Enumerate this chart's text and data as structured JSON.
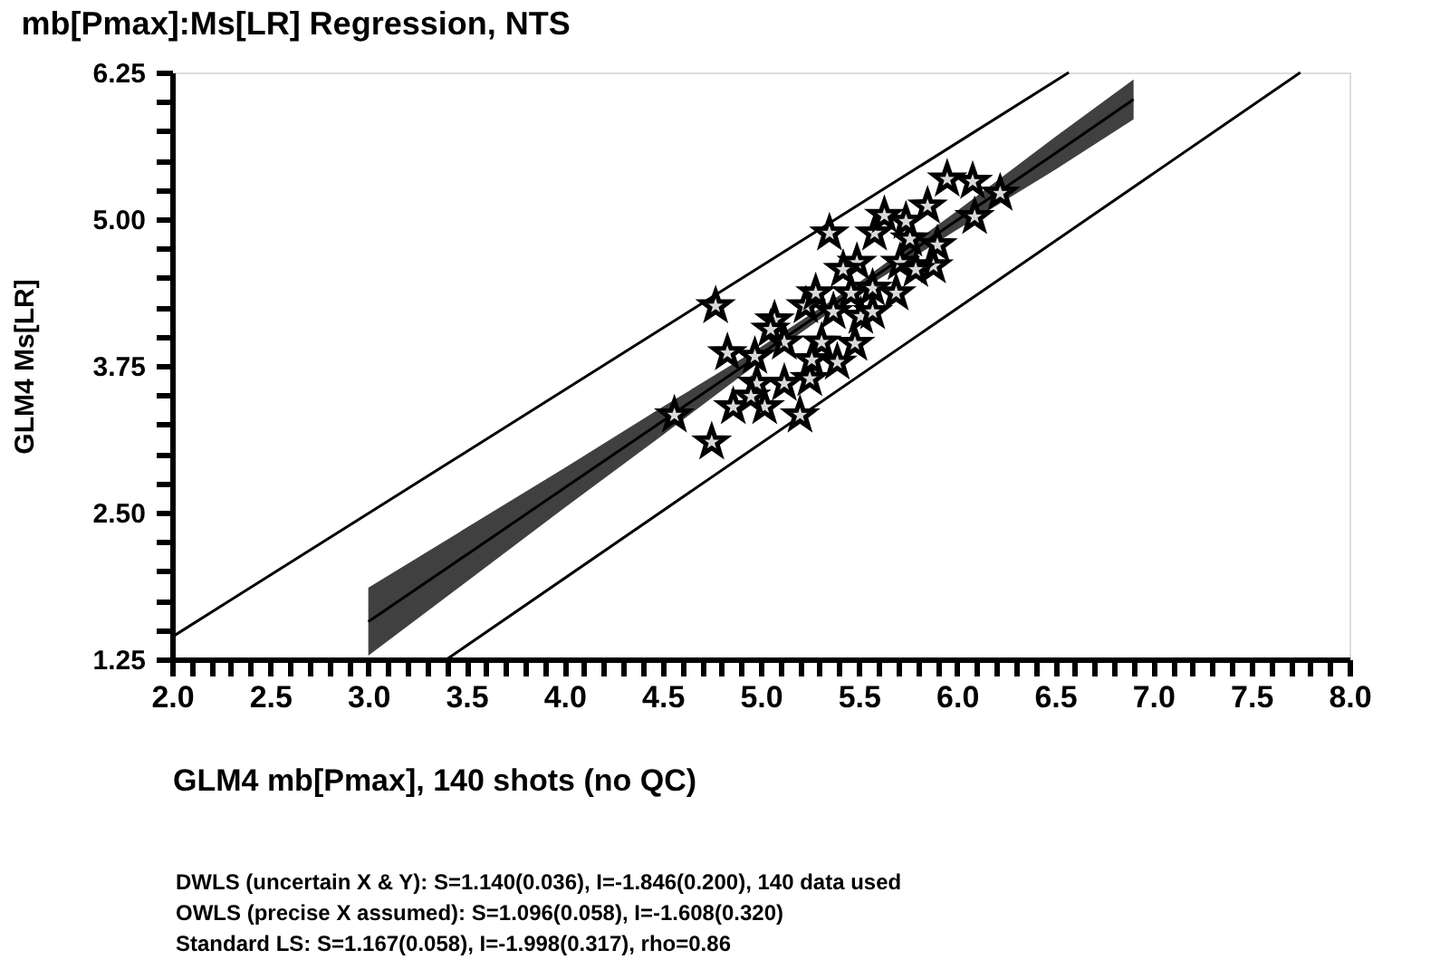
{
  "chart_data": {
    "type": "scatter",
    "title": "mb[Pmax]:Ms[LR] Regression, NTS",
    "xlabel": "GLM4      mb[Pmax], 140 shots (no QC)",
    "ylabel": "GLM4          Ms[LR]",
    "annotations": [
      "DWLS (uncertain X & Y): S=1.140(0.036), I=-1.846(0.200),   140 data used",
      "OWLS (precise X assumed): S=1.096(0.058), I=-1.608(0.320)",
      "Standard LS: S=1.167(0.058), I=-1.998(0.317), rho=0.86"
    ],
    "marker": "star",
    "grid": false,
    "xlim": [
      2.0,
      8.0
    ],
    "ylim": [
      1.25,
      6.25
    ],
    "xticks": [
      {
        "value": 2.0,
        "label": "2.0"
      },
      {
        "value": 2.1,
        "label": null
      },
      {
        "value": 2.2,
        "label": null
      },
      {
        "value": 2.3,
        "label": null
      },
      {
        "value": 2.4,
        "label": null
      },
      {
        "value": 2.5,
        "label": "2.5"
      },
      {
        "value": 2.6,
        "label": null
      },
      {
        "value": 2.7,
        "label": null
      },
      {
        "value": 2.8,
        "label": null
      },
      {
        "value": 2.9,
        "label": null
      },
      {
        "value": 3.0,
        "label": "3.0"
      },
      {
        "value": 3.1,
        "label": null
      },
      {
        "value": 3.2,
        "label": null
      },
      {
        "value": 3.3,
        "label": null
      },
      {
        "value": 3.4,
        "label": null
      },
      {
        "value": 3.5,
        "label": "3.5"
      },
      {
        "value": 3.6,
        "label": null
      },
      {
        "value": 3.7,
        "label": null
      },
      {
        "value": 3.8,
        "label": null
      },
      {
        "value": 3.9,
        "label": null
      },
      {
        "value": 4.0,
        "label": "4.0"
      },
      {
        "value": 4.1,
        "label": null
      },
      {
        "value": 4.2,
        "label": null
      },
      {
        "value": 4.3,
        "label": null
      },
      {
        "value": 4.4,
        "label": null
      },
      {
        "value": 4.5,
        "label": "4.5"
      },
      {
        "value": 4.6,
        "label": null
      },
      {
        "value": 4.7,
        "label": null
      },
      {
        "value": 4.8,
        "label": null
      },
      {
        "value": 4.9,
        "label": null
      },
      {
        "value": 5.0,
        "label": "5.0"
      },
      {
        "value": 5.1,
        "label": null
      },
      {
        "value": 5.2,
        "label": null
      },
      {
        "value": 5.3,
        "label": null
      },
      {
        "value": 5.4,
        "label": null
      },
      {
        "value": 5.5,
        "label": "5.5"
      },
      {
        "value": 5.6,
        "label": null
      },
      {
        "value": 5.7,
        "label": null
      },
      {
        "value": 5.8,
        "label": null
      },
      {
        "value": 5.9,
        "label": null
      },
      {
        "value": 6.0,
        "label": "6.0"
      },
      {
        "value": 6.1,
        "label": null
      },
      {
        "value": 6.2,
        "label": null
      },
      {
        "value": 6.3,
        "label": null
      },
      {
        "value": 6.4,
        "label": null
      },
      {
        "value": 6.5,
        "label": "6.5"
      },
      {
        "value": 6.6,
        "label": null
      },
      {
        "value": 6.7,
        "label": null
      },
      {
        "value": 6.8,
        "label": null
      },
      {
        "value": 6.9,
        "label": null
      },
      {
        "value": 7.0,
        "label": "7.0"
      },
      {
        "value": 7.1,
        "label": null
      },
      {
        "value": 7.2,
        "label": null
      },
      {
        "value": 7.3,
        "label": null
      },
      {
        "value": 7.4,
        "label": null
      },
      {
        "value": 7.5,
        "label": "7.5"
      },
      {
        "value": 7.6,
        "label": null
      },
      {
        "value": 7.7,
        "label": null
      },
      {
        "value": 7.8,
        "label": null
      },
      {
        "value": 7.9,
        "label": null
      },
      {
        "value": 8.0,
        "label": "8.0"
      }
    ],
    "yticks": [
      {
        "value": 1.25,
        "label": "1.25"
      },
      {
        "value": 1.5,
        "label": null
      },
      {
        "value": 1.75,
        "label": null
      },
      {
        "value": 2.0,
        "label": null
      },
      {
        "value": 2.25,
        "label": null
      },
      {
        "value": 2.5,
        "label": "2.50"
      },
      {
        "value": 2.75,
        "label": null
      },
      {
        "value": 3.0,
        "label": null
      },
      {
        "value": 3.25,
        "label": null
      },
      {
        "value": 3.5,
        "label": null
      },
      {
        "value": 3.75,
        "label": "3.75"
      },
      {
        "value": 4.0,
        "label": null
      },
      {
        "value": 4.25,
        "label": null
      },
      {
        "value": 4.5,
        "label": null
      },
      {
        "value": 4.75,
        "label": null
      },
      {
        "value": 5.0,
        "label": "5.00"
      },
      {
        "value": 5.25,
        "label": null
      },
      {
        "value": 5.5,
        "label": null
      },
      {
        "value": 5.75,
        "label": null
      },
      {
        "value": 6.0,
        "label": null
      },
      {
        "value": 6.25,
        "label": "6.25"
      }
    ],
    "series": [
      {
        "type": "line",
        "color": "#000000",
        "marker": "none",
        "x": [
          3.0,
          3.5,
          4.0,
          4.5,
          5.0,
          5.5,
          6.0,
          6.5,
          6.9
        ],
        "values": [
          1.57,
          2.14,
          2.71,
          3.28,
          3.85,
          4.42,
          4.99,
          5.56,
          6.02
        ],
        "lower": [
          1.28,
          1.91,
          2.54,
          3.16,
          3.79,
          4.38,
          4.91,
          5.42,
          5.85
        ],
        "upper": [
          1.86,
          2.37,
          2.88,
          3.4,
          3.91,
          4.46,
          5.07,
          5.7,
          6.19
        ]
      },
      {
        "type": "line",
        "color": "#000000",
        "marker": "none",
        "x": [
          2.0,
          6.57
        ],
        "values": [
          1.44,
          6.25
        ]
      },
      {
        "type": "line",
        "color": "#000000",
        "marker": "none",
        "x": [
          3.4,
          7.75
        ],
        "values": [
          1.25,
          6.25
        ]
      },
      {
        "color": "#d9d9d9",
        "x": [
          4.77,
          4.56,
          4.75,
          4.83,
          4.86,
          4.97,
          4.98,
          5.02,
          5.07,
          5.12,
          5.12,
          5.25,
          5.23,
          5.31,
          5.28,
          5.37,
          5.35,
          5.48,
          5.46,
          5.49,
          5.57,
          5.58,
          5.69,
          5.71,
          5.76,
          5.85,
          5.9,
          5.88,
          5.95,
          6.08,
          6.09,
          6.22,
          5.42,
          5.51,
          5.79,
          5.05,
          4.95,
          5.26,
          5.39,
          5.57,
          5.74,
          5.63,
          5.2
        ],
        "values": [
          4.26,
          3.33,
          3.1,
          3.86,
          3.4,
          3.83,
          3.6,
          3.4,
          4.14,
          3.95,
          3.6,
          3.64,
          4.26,
          3.95,
          4.37,
          4.21,
          4.88,
          3.94,
          4.37,
          4.63,
          4.41,
          4.88,
          4.37,
          4.63,
          4.83,
          5.11,
          4.78,
          4.6,
          5.34,
          5.32,
          5.02,
          5.22,
          4.57,
          4.17,
          4.57,
          4.06,
          3.49,
          3.8,
          3.78,
          4.21,
          4.98,
          5.03,
          3.33
        ]
      }
    ]
  }
}
